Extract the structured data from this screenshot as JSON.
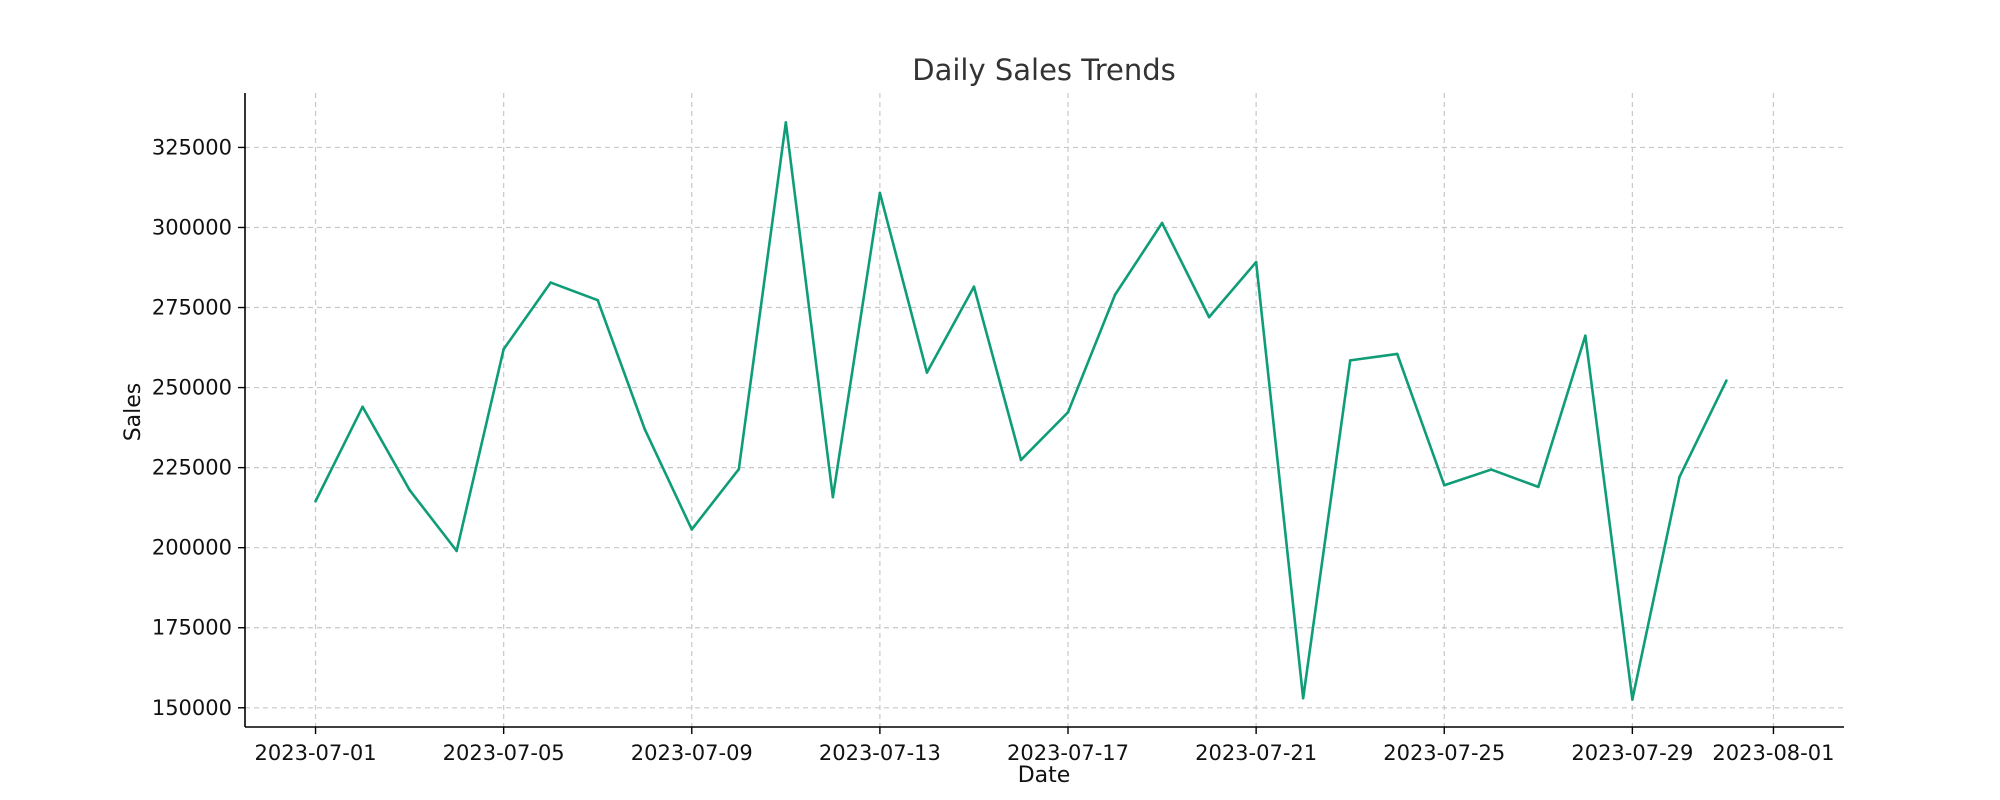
{
  "chart_data": {
    "type": "line",
    "title": "Daily Sales Trends",
    "xlabel": "Date",
    "ylabel": "Sales",
    "x": [
      "2023-07-01",
      "2023-07-02",
      "2023-07-03",
      "2023-07-04",
      "2023-07-05",
      "2023-07-06",
      "2023-07-07",
      "2023-07-08",
      "2023-07-09",
      "2023-07-10",
      "2023-07-11",
      "2023-07-12",
      "2023-07-13",
      "2023-07-14",
      "2023-07-15",
      "2023-07-16",
      "2023-07-17",
      "2023-07-18",
      "2023-07-19",
      "2023-07-20",
      "2023-07-21",
      "2023-07-22",
      "2023-07-23",
      "2023-07-24",
      "2023-07-25",
      "2023-07-26",
      "2023-07-27",
      "2023-07-28",
      "2023-07-29",
      "2023-07-30",
      "2023-07-31"
    ],
    "series": [
      {
        "color": "#0f9d77",
        "values": [
          214500,
          244000,
          218000,
          199000,
          262000,
          282800,
          277300,
          237000,
          205700,
          224500,
          332800,
          215800,
          310800,
          254700,
          281500,
          227400,
          242300,
          279000,
          301400,
          272000,
          289200,
          153000,
          258500,
          260500,
          219500,
          224400,
          219000,
          266200,
          152600,
          222000,
          252200
        ]
      }
    ],
    "xticks": [
      "2023-07-01",
      "2023-07-05",
      "2023-07-09",
      "2023-07-13",
      "2023-07-17",
      "2023-07-21",
      "2023-07-25",
      "2023-07-29",
      "2023-08-01"
    ],
    "yticks": [
      150000,
      175000,
      200000,
      225000,
      250000,
      275000,
      300000,
      325000
    ],
    "xlim": [
      "2023-06-29.5",
      "2023-08-02.5"
    ],
    "ylim": [
      144000,
      342000
    ],
    "grid": true
  }
}
